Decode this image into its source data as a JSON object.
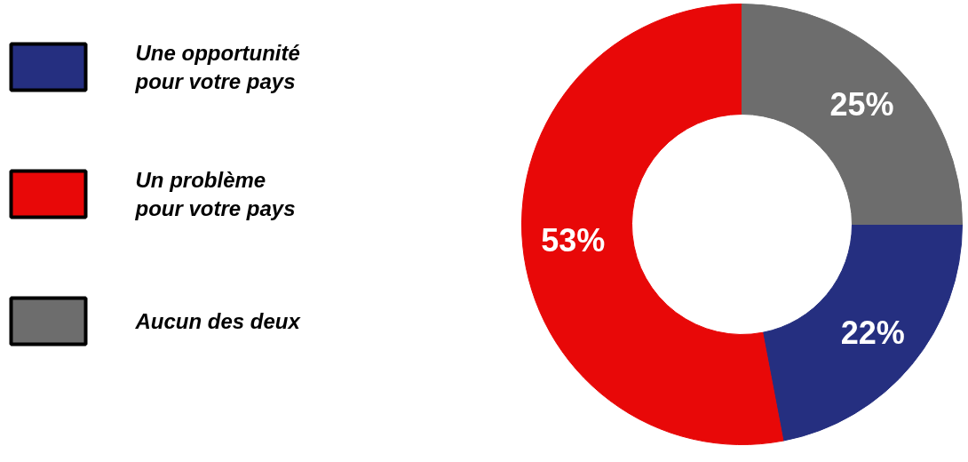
{
  "chart_data": {
    "type": "donut",
    "categories": [
      "Une opportunité pour votre pays",
      "Un problème pour votre pays",
      "Aucun des deux"
    ],
    "values": [
      22,
      53,
      25
    ],
    "colors": [
      "#252f80",
      "#e80808",
      "#6d6d6d"
    ],
    "value_labels": [
      "22%",
      "53%",
      "25%"
    ],
    "legend": "left"
  }
}
